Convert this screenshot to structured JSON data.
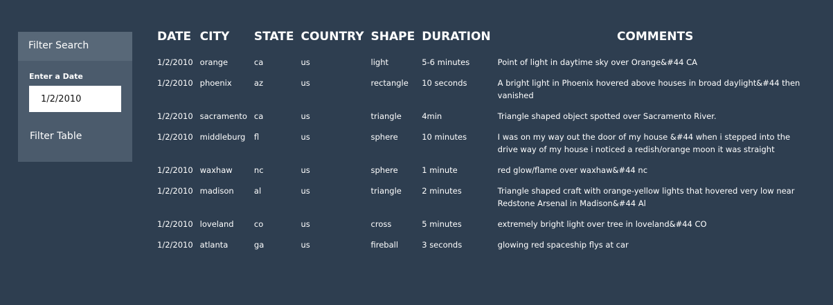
{
  "filter": {
    "title": "Filter Search",
    "date_label": "Enter a Date",
    "date_value": "1/2/2010",
    "button_label": "Filter Table"
  },
  "table": {
    "headers": [
      "DATE",
      "CITY",
      "STATE",
      "COUNTRY",
      "SHAPE",
      "DURATION",
      "COMMENTS"
    ],
    "rows": [
      [
        "1/2/2010",
        "orange",
        "ca",
        "us",
        "light",
        "5-6 minutes",
        "Point of light in daytime sky over Orange&#44 CA"
      ],
      [
        "1/2/2010",
        "phoenix",
        "az",
        "us",
        "rectangle",
        "10 seconds",
        "A bright light in Phoenix hovered above houses in broad daylight&#44 then vanished"
      ],
      [
        "1/2/2010",
        "sacramento",
        "ca",
        "us",
        "triangle",
        "4min",
        "Triangle shaped object spotted over Sacramento River."
      ],
      [
        "1/2/2010",
        "middleburg",
        "fl",
        "us",
        "sphere",
        "10 minutes",
        "I was on my way out the door of my house &#44 when i stepped into the drive way of my house i noticed a redish/orange moon it was straight"
      ],
      [
        "1/2/2010",
        "waxhaw",
        "nc",
        "us",
        "sphere",
        "1 minute",
        "red glow/flame over waxhaw&#44 nc"
      ],
      [
        "1/2/2010",
        "madison",
        "al",
        "us",
        "triangle",
        "2 minutes",
        "Triangle shaped craft with orange-yellow lights that hovered very low near Redstone Arsenal in Madison&#44 Al"
      ],
      [
        "1/2/2010",
        "loveland",
        "co",
        "us",
        "cross",
        "5 minutes",
        "extremely bright light over tree in loveland&#44 CO"
      ],
      [
        "1/2/2010",
        "atlanta",
        "ga",
        "us",
        "fireball",
        "3 seconds",
        "glowing red spaceship flys at car"
      ]
    ]
  }
}
